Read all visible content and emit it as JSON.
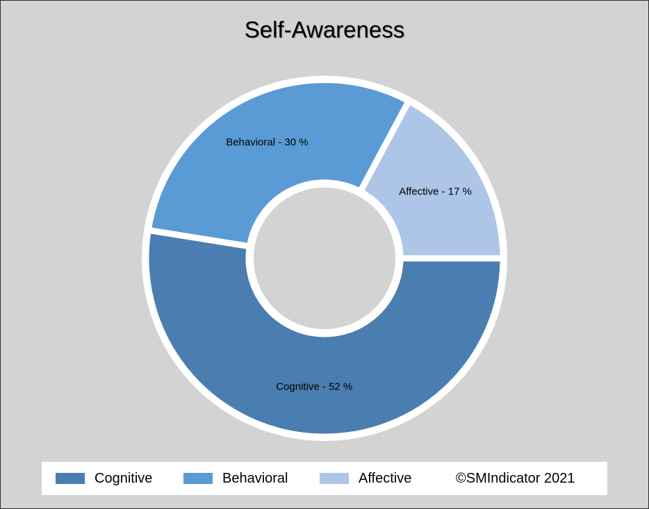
{
  "chart_data": {
    "type": "pie",
    "title": "Self-Awareness",
    "categories": [
      "Cognitive",
      "Behavioral",
      "Affective"
    ],
    "values": [
      52,
      30,
      17
    ],
    "slice_labels": [
      "Cognitive - 52 %",
      "Behavioral - 30 %",
      "Affective - 17 %"
    ],
    "colors": [
      "#4a7eb0",
      "#5b9bd5",
      "#adc5e7"
    ],
    "legend": [
      "Cognitive",
      "Behavioral",
      "Affective"
    ],
    "legend_position": "bottom",
    "donut": true
  },
  "legend": {
    "items": [
      {
        "label": "Cognitive",
        "color": "#4a7eb0"
      },
      {
        "label": "Behavioral",
        "color": "#5b9bd5"
      },
      {
        "label": "Affective",
        "color": "#adc5e7"
      }
    ],
    "copyright": "©SMIndicator 2021"
  },
  "colors": {
    "background": "#d3d3d3",
    "separator": "#ffffff"
  }
}
